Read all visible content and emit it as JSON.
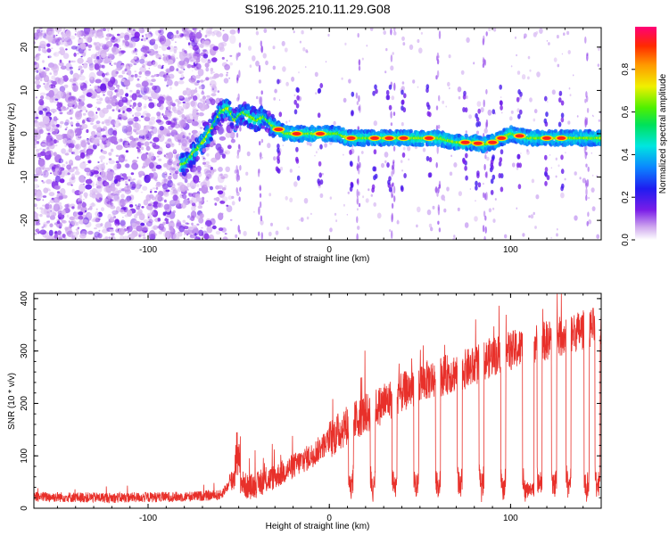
{
  "title": "S196.2025.210.11.29.G08",
  "chart_data": [
    {
      "type": "heatmap",
      "xlabel": "Height of straight line (km)",
      "ylabel": "Frequency (Hz)",
      "xlim": [
        -163,
        150
      ],
      "ylim": [
        -24.5,
        24.5
      ],
      "xticks": [
        "-100",
        "0",
        "100"
      ],
      "yticks": [
        "-20",
        "-10",
        "0",
        "10",
        "20"
      ],
      "colorbar": {
        "label": "Normalized spectral amplitude",
        "ticks": [
          "0.0",
          "0.2",
          "0.4",
          "0.6",
          "0.8"
        ],
        "range": [
          0,
          1
        ]
      },
      "ridge": {
        "x": [
          -80,
          -76,
          -72,
          -68,
          -64,
          -60,
          -56,
          -52,
          -48,
          -44,
          -40,
          -36,
          -32,
          -28,
          -24,
          -20,
          -15,
          -10,
          -5,
          0,
          5,
          10,
          20,
          30,
          40,
          50,
          60,
          70,
          80,
          85,
          90,
          95,
          100,
          110,
          120,
          130,
          140,
          150
        ],
        "y": [
          -7,
          -5,
          -3,
          -1,
          2,
          5,
          6,
          3,
          5,
          4,
          3,
          4,
          2,
          1,
          0,
          0,
          0,
          0,
          0,
          0,
          0,
          -1,
          -1,
          -1,
          -1,
          -1,
          -1,
          -2,
          -2,
          -2.5,
          -2,
          -1,
          0,
          -1,
          -1,
          -1,
          -1,
          -1
        ]
      },
      "peaks_x": [
        -28,
        -18,
        -5,
        12,
        25,
        33,
        41,
        55,
        75,
        82,
        90,
        95,
        105,
        120,
        128
      ]
    },
    {
      "type": "line",
      "xlabel": "Height of straight line (km)",
      "ylabel": "SNR (10 * v/v)",
      "xlim": [
        -163,
        150
      ],
      "ylim": [
        0,
        410
      ],
      "xticks": [
        "-100",
        "0",
        "100"
      ],
      "yticks": [
        "0",
        "100",
        "200",
        "300",
        "400"
      ],
      "color": "#e8302a",
      "envelope": {
        "x": [
          -163,
          -120,
          -80,
          -60,
          -52,
          -45,
          -40,
          -30,
          -20,
          -10,
          0,
          10,
          20,
          30,
          40,
          50,
          60,
          70,
          80,
          90,
          100,
          110,
          120,
          130,
          140,
          150
        ],
        "base": [
          22,
          20,
          22,
          25,
          60,
          40,
          45,
          60,
          80,
          100,
          130,
          160,
          180,
          200,
          220,
          240,
          250,
          260,
          270,
          290,
          300,
          310,
          320,
          330,
          340,
          350
        ]
      },
      "dips_x": [
        12,
        24,
        36,
        48,
        60,
        72,
        84,
        96,
        108,
        116,
        124,
        132,
        142,
        148
      ]
    }
  ]
}
